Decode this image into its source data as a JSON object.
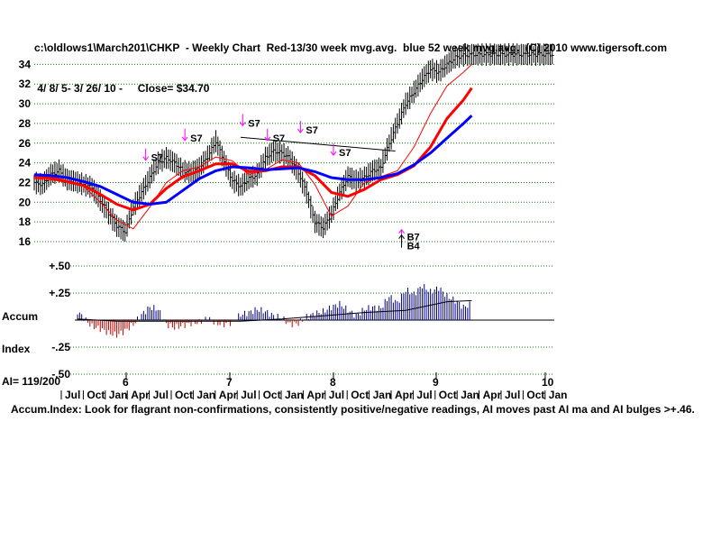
{
  "header": {
    "line1": "c:\\oldlows1\\March201\\CHKP  - Weekly Chart  Red-13/30 week mvg.avg.  blue 52 week mvg.avg.  (C) 2010 www.tigersoft.com",
    "line2": " 4/ 8/ 5- 3/ 26/ 10 -     Close= $34.70"
  },
  "accum_label": {
    "line1": "Accum",
    "line2": "Index",
    "line3": "AI= 119/200"
  },
  "footer": "Accum.Index: Look for flagrant non-confirmations, consistently positive/negative readings, AI moves past AI ma and AI bulges >+.46.",
  "colors": {
    "price_bar": "#000000",
    "ma13": "#ff0000",
    "ma30": "#ff0000",
    "ma52": "#0000ff",
    "grid": "#008000",
    "signal_arrow": "#ff00ff",
    "ai_positive": "#000080",
    "ai_negative": "#c00000"
  },
  "chart_data": [
    {
      "type": "line",
      "panel": "price",
      "ylim": [
        16,
        35.5
      ],
      "y_ticks": [
        "34",
        "32",
        "30",
        "28",
        "26",
        "24",
        "22",
        "20",
        "18",
        "16"
      ],
      "grid": true,
      "x_range": [
        0,
        252
      ],
      "series": [
        {
          "kind": "weekly-bars",
          "x": [
            0,
            4,
            8,
            12,
            16,
            20,
            24,
            28,
            32,
            36,
            40,
            44,
            48,
            52,
            56,
            60,
            64,
            68,
            72,
            76,
            80,
            84,
            88,
            92,
            96,
            100,
            104,
            108,
            112,
            116,
            120,
            124,
            128,
            132,
            136,
            140,
            144,
            148,
            152,
            156,
            160,
            164,
            168,
            172,
            176,
            180,
            184,
            188,
            192,
            196,
            200,
            204,
            208,
            212,
            216,
            220,
            224,
            228,
            232,
            236,
            240,
            244,
            248,
            252
          ],
          "y": [
            22.0,
            21.8,
            22.8,
            23.2,
            22.3,
            22.1,
            21.8,
            21.5,
            20.2,
            18.9,
            17.6,
            17.0,
            19.5,
            21.0,
            22.5,
            24.0,
            24.5,
            24.0,
            23.2,
            23.0,
            23.5,
            24.6,
            26.2,
            24.2,
            22.2,
            21.6,
            22.4,
            22.8,
            24.5,
            25.2,
            25.0,
            24.4,
            23.0,
            21.0,
            18.0,
            17.4,
            18.8,
            21.0,
            22.6,
            22.2,
            22.5,
            23.2,
            23.5,
            26.0,
            28.0,
            30.0,
            31.2,
            32.5,
            33.5,
            33.2,
            34.0,
            34.7,
            34.9,
            35.0,
            35.0,
            35.0,
            35.0,
            35.0,
            35.0,
            35.0,
            35.0,
            35.0,
            35.0,
            35.0
          ]
        },
        {
          "name": "Red-13 week mvg.avg.",
          "x": [
            0,
            8,
            16,
            24,
            32,
            40,
            48,
            56,
            64,
            72,
            80,
            88,
            96,
            104,
            112,
            120,
            128,
            136,
            144,
            152,
            160,
            168,
            176,
            184,
            192,
            200,
            208,
            212
          ],
          "y": [
            22.4,
            22.3,
            22.0,
            21.6,
            20.0,
            18.2,
            17.3,
            19.5,
            22.0,
            23.2,
            23.6,
            24.6,
            24.2,
            22.8,
            23.3,
            24.3,
            24.0,
            21.8,
            18.6,
            19.6,
            22.0,
            22.6,
            23.2,
            25.6,
            29.0,
            31.8,
            33.2,
            34.0
          ]
        },
        {
          "name": "Red-30 week mvg.avg.",
          "x": [
            0,
            8,
            16,
            24,
            32,
            40,
            48,
            56,
            64,
            72,
            80,
            88,
            96,
            104,
            112,
            120,
            128,
            136,
            144,
            152,
            160,
            168,
            176,
            184,
            192,
            200,
            208,
            212
          ],
          "y": [
            22.6,
            22.5,
            22.1,
            21.7,
            20.8,
            19.8,
            19.2,
            19.8,
            21.4,
            22.6,
            23.2,
            23.9,
            23.9,
            23.1,
            23.2,
            23.6,
            23.6,
            22.7,
            21.0,
            20.6,
            21.3,
            22.3,
            22.8,
            23.7,
            25.6,
            28.5,
            30.4,
            31.6
          ]
        },
        {
          "name": "blue 52 week mvg.avg.",
          "x": [
            0,
            8,
            16,
            24,
            32,
            40,
            48,
            56,
            64,
            72,
            80,
            88,
            96,
            104,
            112,
            120,
            128,
            136,
            144,
            152,
            160,
            168,
            176,
            184,
            192,
            200,
            208,
            212
          ],
          "y": [
            22.8,
            22.7,
            22.5,
            22.1,
            21.6,
            20.8,
            20.0,
            19.8,
            20.0,
            21.2,
            22.4,
            23.2,
            23.6,
            23.5,
            23.3,
            23.4,
            23.5,
            23.1,
            22.5,
            22.3,
            22.3,
            22.5,
            22.9,
            23.8,
            25.0,
            26.5,
            28.0,
            28.8
          ]
        }
      ],
      "annotations": [
        {
          "label": "S7",
          "x": 54,
          "y": 24.0,
          "type": "sell"
        },
        {
          "label": "S7",
          "x": 73,
          "y": 26.0,
          "type": "sell"
        },
        {
          "label": "S7",
          "x": 101,
          "y": 27.5,
          "type": "sell"
        },
        {
          "label": "S7",
          "x": 113,
          "y": 26.0,
          "type": "sell"
        },
        {
          "label": "S7",
          "x": 129,
          "y": 26.8,
          "type": "sell"
        },
        {
          "label": "S7",
          "x": 145,
          "y": 24.5,
          "type": "sell"
        },
        {
          "label": "B7",
          "x": 178,
          "y": 17.4,
          "type": "buy"
        },
        {
          "label": "B4",
          "x": 178,
          "y": 17.4,
          "type": "buy"
        }
      ],
      "trendline": {
        "x": [
          100,
          175
        ],
        "y": [
          26.6,
          25.2
        ]
      }
    },
    {
      "type": "bar",
      "panel": "accumulation-index",
      "ylim": [
        -0.5,
        0.5
      ],
      "y_ticks": [
        "+.50",
        "+.25",
        "",
        "-.25",
        "-.50"
      ],
      "x_year_labels": [
        "6",
        "7",
        "8",
        "9",
        "10"
      ],
      "x_month_labels": [
        "Jul",
        "Oct",
        "Jan",
        "Apr",
        "Jul",
        "Oct",
        "Jan",
        "Apr",
        "Jul",
        "Oct",
        "Jan",
        "Apr",
        "Jul",
        "Oct",
        "Jan",
        "Apr",
        "Jul",
        "Oct",
        "Jan",
        "Apr",
        "Jul",
        "Oct",
        "Jan"
      ],
      "x": [
        0,
        4,
        8,
        12,
        16,
        20,
        24,
        28,
        32,
        36,
        40,
        44,
        48,
        52,
        56,
        60,
        64,
        68,
        72,
        76,
        80,
        84,
        88,
        92,
        96,
        100,
        104,
        108,
        112,
        116,
        120,
        124,
        128,
        132,
        136,
        140,
        144,
        148,
        152,
        156,
        160,
        164,
        168,
        172,
        176,
        180,
        184,
        188,
        192,
        196,
        200,
        204,
        208,
        212
      ],
      "values": [
        0.05,
        -0.02,
        0.1,
        0.06,
        0.08,
        0.1,
        0.02,
        -0.06,
        -0.08,
        -0.12,
        -0.14,
        -0.1,
        -0.04,
        0.05,
        0.12,
        0.1,
        -0.04,
        -0.07,
        -0.05,
        -0.03,
        -0.02,
        0.02,
        -0.03,
        -0.04,
        -0.02,
        0.05,
        0.07,
        0.1,
        0.08,
        0.04,
        0.02,
        -0.04,
        -0.03,
        0.03,
        0.06,
        0.08,
        0.12,
        0.15,
        0.09,
        0.04,
        0.1,
        0.12,
        0.11,
        0.22,
        0.16,
        0.28,
        0.24,
        0.32,
        0.26,
        0.3,
        0.22,
        0.18,
        0.12,
        0.15
      ],
      "ma": {
        "x": [
          0,
          20,
          40,
          60,
          80,
          100,
          120,
          140,
          160,
          180,
          200,
          212
        ],
        "y": [
          0.0,
          0.01,
          -0.01,
          -0.01,
          -0.01,
          -0.01,
          0.01,
          0.04,
          0.07,
          0.09,
          0.17,
          0.18
        ]
      }
    }
  ]
}
